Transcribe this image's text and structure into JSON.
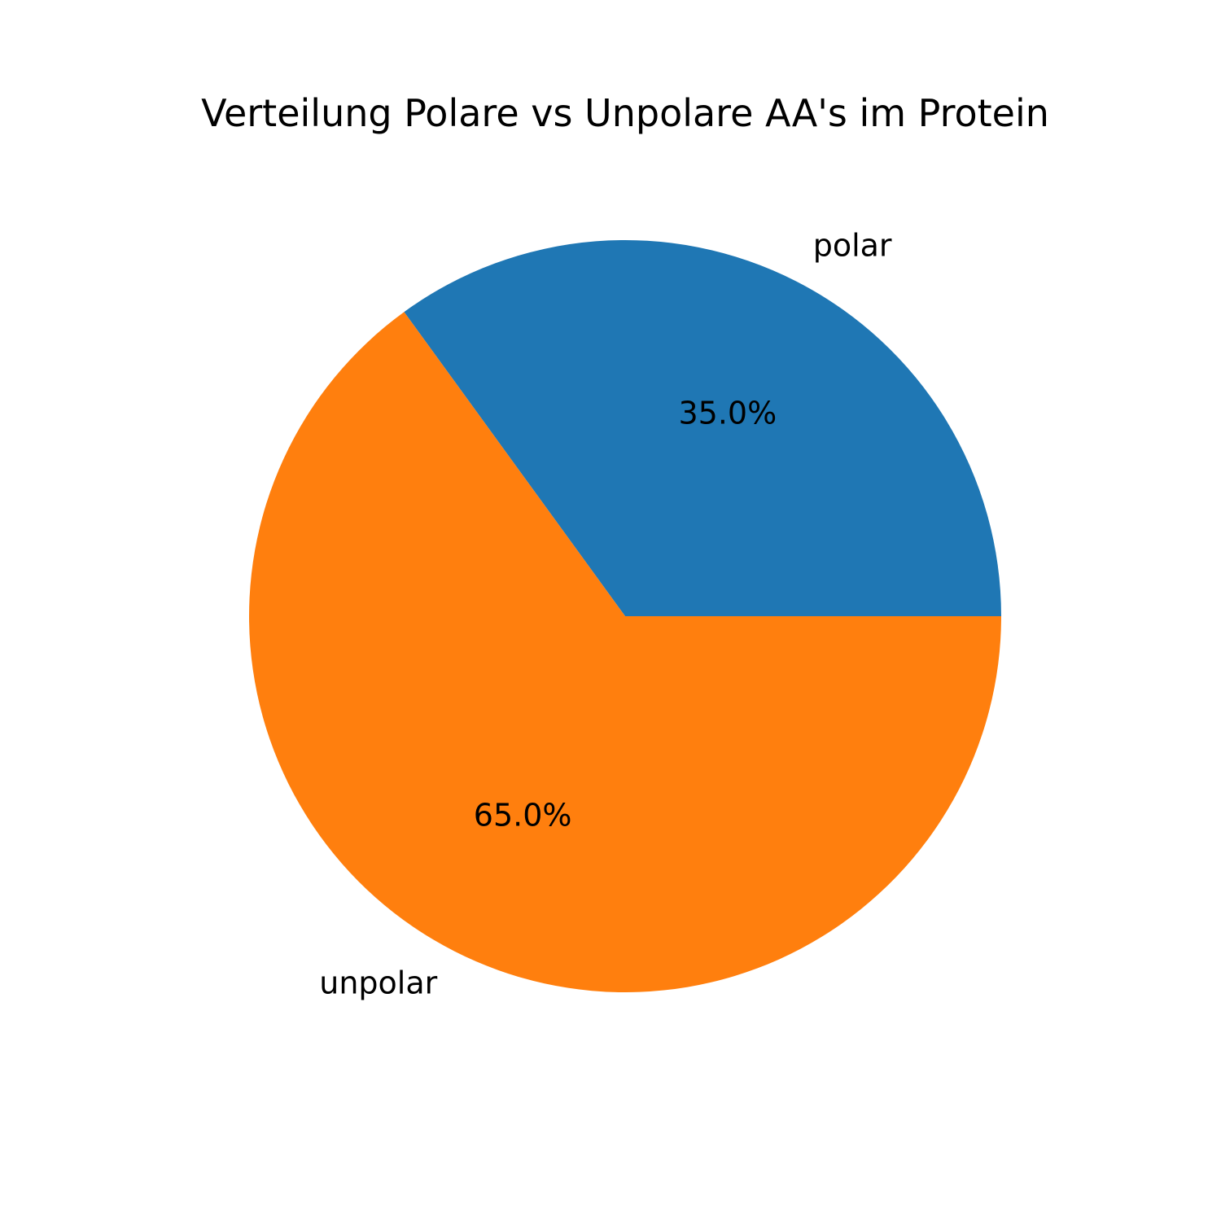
{
  "chart_data": {
    "type": "pie",
    "title": "Verteilung Polare vs Unpolare AA's im Protein",
    "slices": [
      {
        "label": "polar",
        "value": 35.0,
        "pct_text": "35.0%",
        "color": "#1f77b4"
      },
      {
        "label": "unpolar",
        "value": 65.0,
        "pct_text": "65.0%",
        "color": "#ff7f0e"
      }
    ],
    "start_angle_deg": 0,
    "direction": "counterclockwise"
  }
}
